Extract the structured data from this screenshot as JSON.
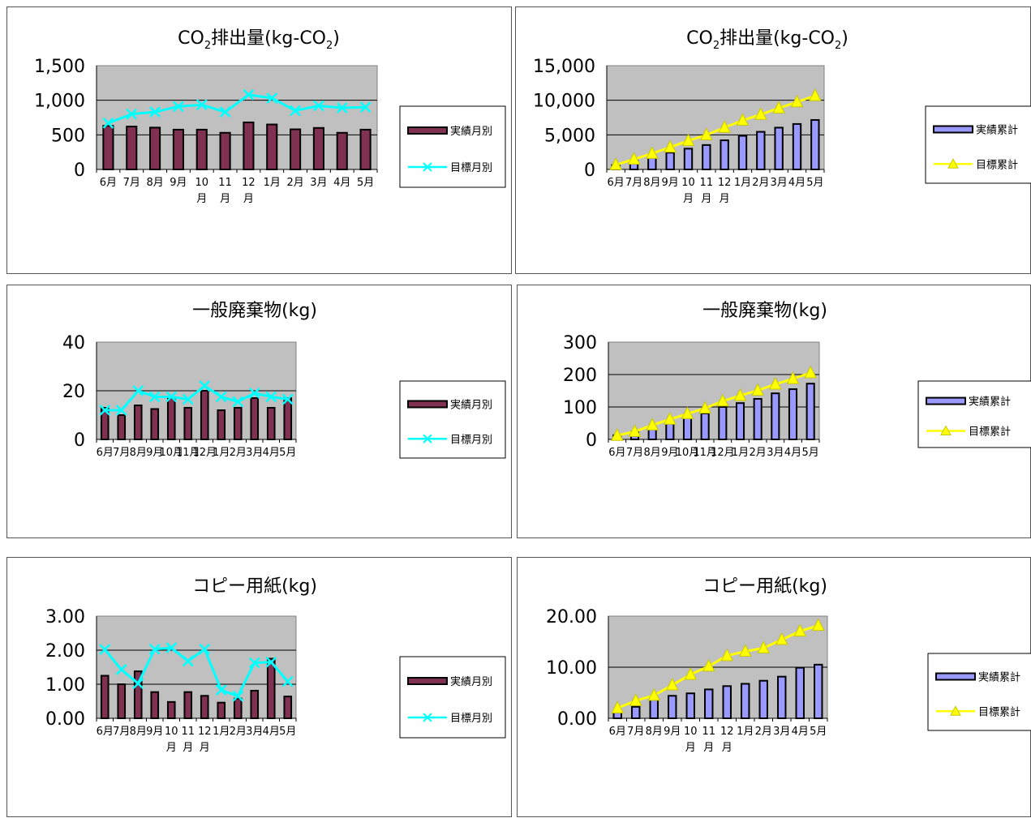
{
  "colors": {
    "plot_bg": "#c0c0c0",
    "grid": "#000000",
    "bar_monthly": "#803050",
    "bar_cumulative": "#9999ff",
    "line_monthly": "#00ffff",
    "line_cumulative": "#ffff00"
  },
  "chart_data": [
    {
      "type": "bar+line",
      "title": "CO2排出量(kg-CO2)",
      "title_main": "CO",
      "title_sub1": "2",
      "title_mid": "排出量(kg-CO",
      "title_sub2": "2",
      "title_end": ")",
      "categories": [
        "6月",
        "7月",
        "8月",
        "9月",
        "10月",
        "11月",
        "12月",
        "1月",
        "2月",
        "3月",
        "4月",
        "5月"
      ],
      "ylim": [
        0,
        1500
      ],
      "yticks": [
        0,
        500,
        1000,
        1500
      ],
      "ytick_labels": [
        "0",
        "500",
        "1,000",
        "1,500"
      ],
      "grid": true,
      "legend_position": "right",
      "series": [
        {
          "name": "実績月別",
          "kind": "bar",
          "values": [
            630,
            620,
            605,
            575,
            575,
            530,
            680,
            650,
            580,
            600,
            530,
            575
          ]
        },
        {
          "name": "目標月別",
          "kind": "line",
          "marker": "x",
          "values": [
            670,
            800,
            830,
            910,
            935,
            830,
            1080,
            1030,
            850,
            920,
            890,
            900
          ]
        }
      ]
    },
    {
      "type": "bar+line",
      "title": "CO2排出量(kg-CO2)",
      "title_main": "CO",
      "title_sub1": "2",
      "title_mid": "排出量(kg-CO",
      "title_sub2": "2",
      "title_end": ")",
      "categories": [
        "6月",
        "7月",
        "8月",
        "9月",
        "10月",
        "11月",
        "12月",
        "1月",
        "2月",
        "3月",
        "4月",
        "5月"
      ],
      "ylim": [
        0,
        15000
      ],
      "yticks": [
        0,
        5000,
        10000,
        15000
      ],
      "ytick_labels": [
        "0",
        "5,000",
        "10,000",
        "15,000"
      ],
      "grid": true,
      "legend_position": "right",
      "series": [
        {
          "name": "実績累計",
          "kind": "bar",
          "values": [
            630,
            1250,
            1850,
            2430,
            3000,
            3530,
            4210,
            4860,
            5440,
            6040,
            6570,
            7150
          ]
        },
        {
          "name": "目標累計",
          "kind": "line",
          "marker": "triangle",
          "values": [
            670,
            1470,
            2300,
            3210,
            4150,
            4980,
            6060,
            7090,
            7940,
            8860,
            9750,
            10650
          ]
        }
      ]
    },
    {
      "type": "bar+line",
      "title": "一般廃棄物(kg)",
      "categories": [
        "6月",
        "7月",
        "8月",
        "9月",
        "10月",
        "11月",
        "12月",
        "1月",
        "2月",
        "3月",
        "4月",
        "5月"
      ],
      "ylim": [
        0,
        40
      ],
      "yticks": [
        0,
        20,
        40
      ],
      "ytick_labels": [
        "0",
        "20",
        "40"
      ],
      "grid": true,
      "legend_position": "right",
      "series": [
        {
          "name": "実績月別",
          "kind": "bar",
          "values": [
            13,
            10,
            14,
            12.5,
            17,
            13,
            20,
            12,
            13,
            17,
            13,
            17
          ]
        },
        {
          "name": "目標月別",
          "kind": "line",
          "marker": "x",
          "values": [
            12,
            12,
            20,
            17.5,
            17.5,
            16.5,
            22,
            17.5,
            15.5,
            19,
            17.5,
            16.5
          ]
        }
      ]
    },
    {
      "type": "bar+line",
      "title": "一般廃棄物(kg)",
      "categories": [
        "6月",
        "7月",
        "8月",
        "9月",
        "10月",
        "11月",
        "12月",
        "1月",
        "2月",
        "3月",
        "4月",
        "5月"
      ],
      "ylim": [
        0,
        300
      ],
      "yticks": [
        0,
        100,
        200,
        300
      ],
      "ytick_labels": [
        "0",
        "100",
        "200",
        "300"
      ],
      "grid": true,
      "legend_position": "right",
      "series": [
        {
          "name": "実績累計",
          "kind": "bar",
          "values": [
            13,
            23,
            37,
            50,
            67,
            80,
            100,
            112,
            125,
            142,
            155,
            172
          ]
        },
        {
          "name": "目標累計",
          "kind": "line",
          "marker": "triangle",
          "values": [
            12,
            24,
            44,
            62,
            79,
            96,
            118,
            135,
            151,
            170,
            187,
            205
          ]
        }
      ]
    },
    {
      "type": "bar+line",
      "title": "コピー用紙(kg)",
      "categories": [
        "6月",
        "7月",
        "8月",
        "9月",
        "10月",
        "11月",
        "12月",
        "1月",
        "2月",
        "3月",
        "4月",
        "5月"
      ],
      "ylim": [
        0,
        3
      ],
      "yticks": [
        0,
        1,
        2,
        3
      ],
      "ytick_labels": [
        "0.00",
        "1.00",
        "2.00",
        "3.00"
      ],
      "grid": true,
      "legend_position": "right",
      "series": [
        {
          "name": "実績月別",
          "kind": "bar",
          "values": [
            1.25,
            1.0,
            1.38,
            0.77,
            0.48,
            0.77,
            0.66,
            0.46,
            0.58,
            0.81,
            1.75,
            0.64
          ]
        },
        {
          "name": "目標月別",
          "kind": "line",
          "marker": "x",
          "values": [
            2.02,
            1.43,
            1.02,
            2.03,
            2.07,
            1.68,
            2.03,
            0.83,
            0.65,
            1.63,
            1.65,
            1.08
          ]
        }
      ]
    },
    {
      "type": "bar+line",
      "title": "コピー用紙(kg)",
      "categories": [
        "6月",
        "7月",
        "8月",
        "9月",
        "10月",
        "11月",
        "12月",
        "1月",
        "2月",
        "3月",
        "4月",
        "5月"
      ],
      "ylim": [
        0,
        20
      ],
      "yticks": [
        0,
        10,
        20
      ],
      "ytick_labels": [
        "0.00",
        "10.00",
        "20.00"
      ],
      "grid": true,
      "legend_position": "right",
      "series": [
        {
          "name": "実績累計",
          "kind": "bar",
          "values": [
            1.25,
            2.25,
            3.63,
            4.4,
            4.88,
            5.65,
            6.3,
            6.75,
            7.35,
            8.15,
            9.9,
            10.5
          ]
        },
        {
          "name": "目標累計",
          "kind": "line",
          "marker": "triangle",
          "values": [
            2.0,
            3.45,
            4.47,
            6.5,
            8.55,
            10.2,
            12.25,
            13.1,
            13.75,
            15.4,
            17.05,
            18.15
          ]
        }
      ]
    }
  ]
}
